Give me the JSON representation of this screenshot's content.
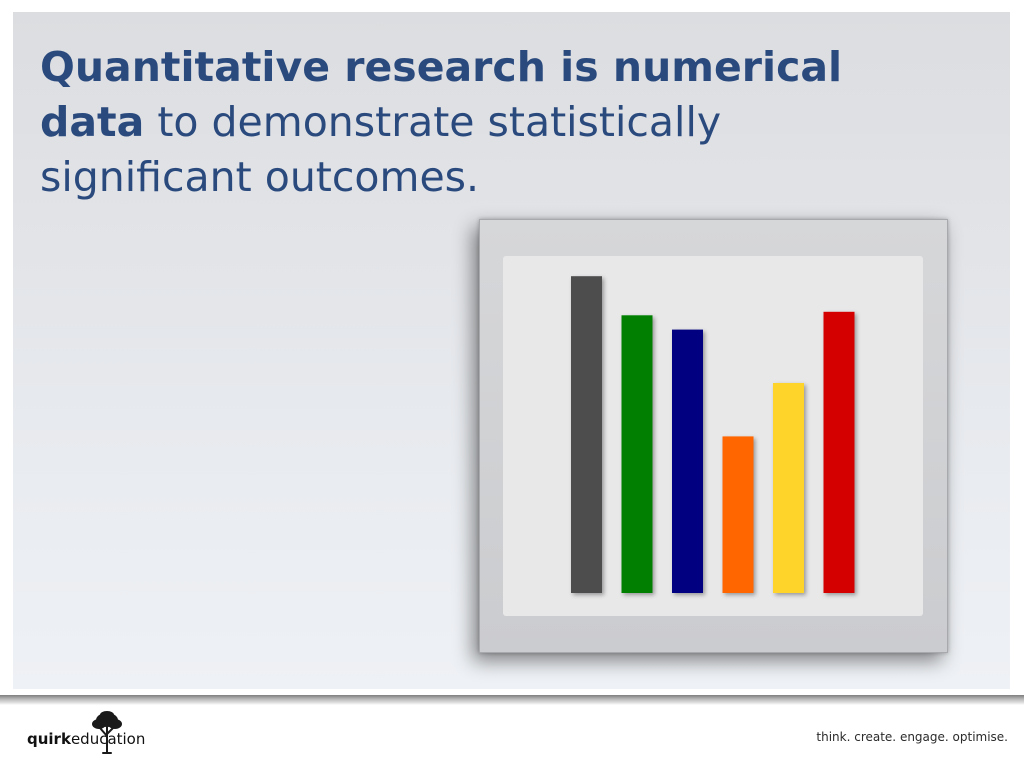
{
  "slide": {
    "headline_bold": "Quantitative research is numerical data",
    "headline_rest": " to demonstrate statistically significant outcomes."
  },
  "bar_chart": {
    "values": [
      0.89,
      0.78,
      0.74,
      0.44,
      0.59,
      0.79
    ],
    "colors": [
      "#4d4d4d",
      "#007f00",
      "#000080",
      "#ff6600",
      "#ffd42a",
      "#d40000"
    ]
  },
  "footer": {
    "logo_bold": "quirk",
    "logo_regular": "education",
    "tagline": "think. create. engage. optimise."
  }
}
